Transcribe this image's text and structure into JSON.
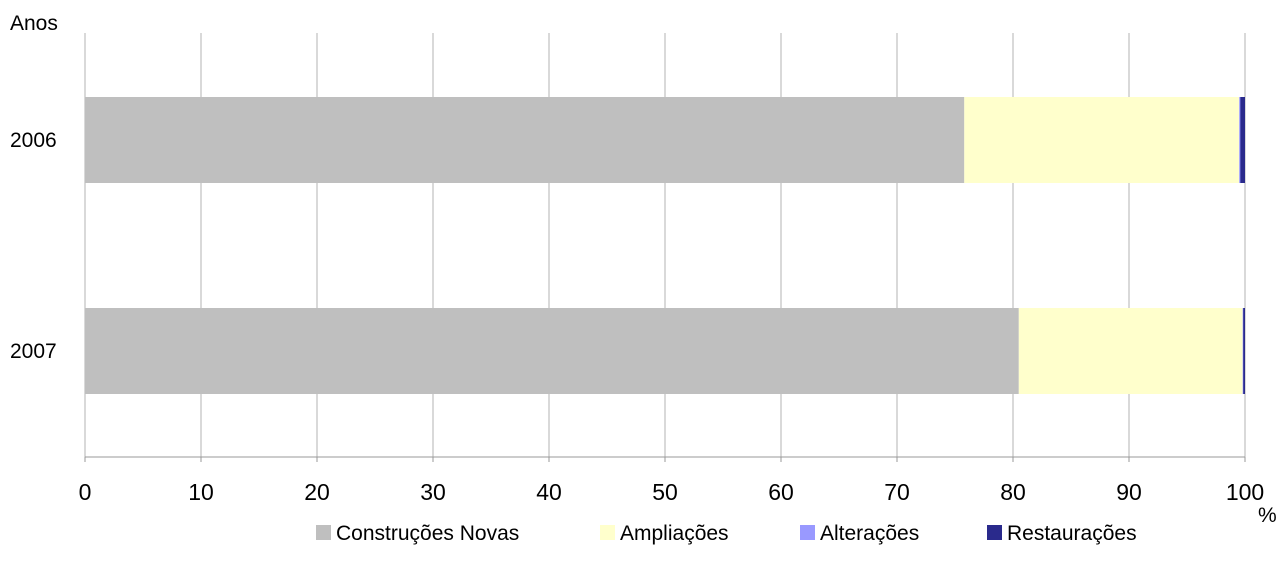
{
  "chart_data": {
    "type": "bar",
    "orientation": "horizontal",
    "stacked": true,
    "categories": [
      "2006",
      "2007"
    ],
    "series": [
      {
        "name": "Construções Novas",
        "color": "#bfbfbf",
        "values": [
          75.8,
          80.5
        ]
      },
      {
        "name": "Ampliações",
        "color": "#ffffcc",
        "values": [
          23.7,
          19.3
        ]
      },
      {
        "name": "Alterações",
        "color": "#9999ff",
        "values": [
          0.1,
          0.05
        ]
      },
      {
        "name": "Restaurações",
        "color": "#2a2a8c",
        "values": [
          0.4,
          0.15
        ]
      }
    ],
    "x_ticks": [
      "0",
      "10",
      "20",
      "30",
      "40",
      "50",
      "60",
      "70",
      "80",
      "90",
      "100"
    ],
    "xlim": [
      0,
      100
    ],
    "xlabel": "%",
    "ylabel": "Anos",
    "grid": "vertical",
    "legend_position": "bottom"
  }
}
